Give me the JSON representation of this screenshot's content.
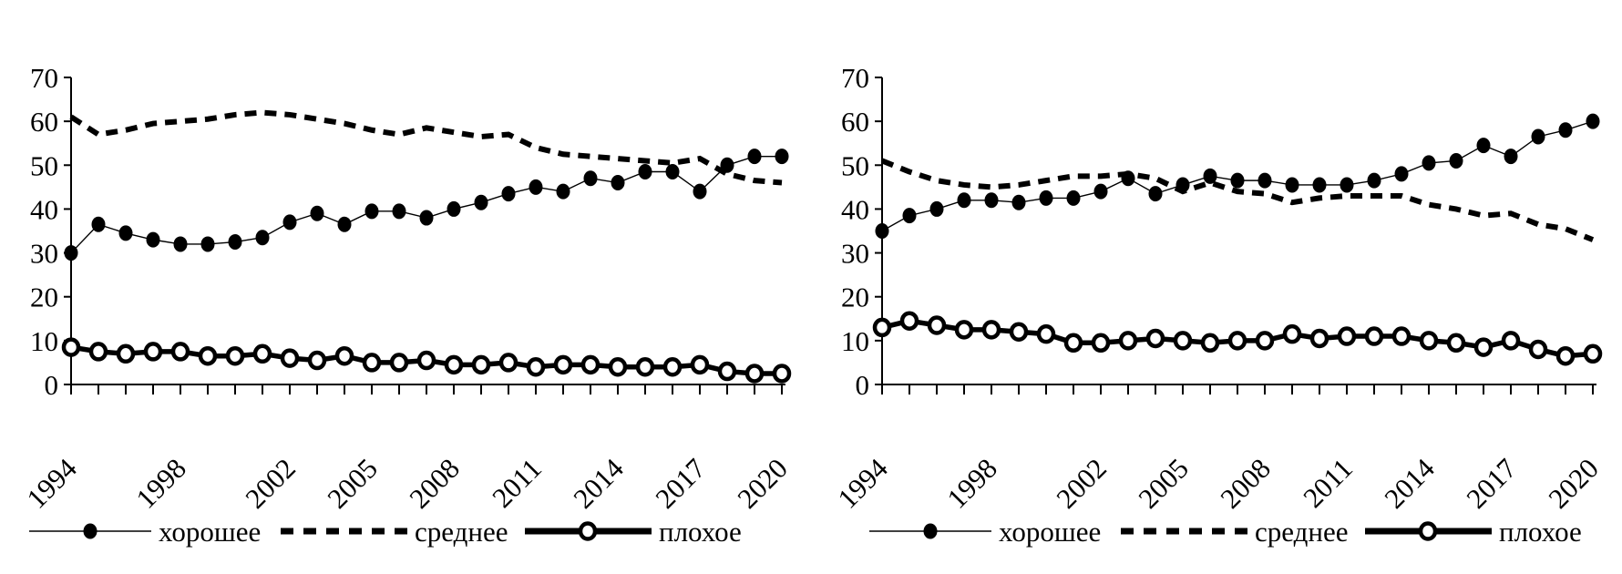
{
  "figure": {
    "background": "#ffffff",
    "line_color": "#000000",
    "text_color": "#000000"
  },
  "legend": {
    "items": [
      {
        "label": "хорошее",
        "line": "thin-solid",
        "marker": "filled-circle"
      },
      {
        "label": "среднее",
        "line": "thick-dashed",
        "marker": "none"
      },
      {
        "label": "плохое",
        "line": "thick-solid",
        "marker": "open-circle"
      }
    ]
  },
  "chart_data": [
    {
      "id": "left-chart",
      "type": "line",
      "title": "",
      "xlabel": "",
      "ylabel": "",
      "grid": false,
      "legend_position": "bottom",
      "legend_x_offset": 0,
      "ylim": [
        0,
        70
      ],
      "yticks": [
        0,
        10,
        20,
        30,
        40,
        50,
        60,
        70
      ],
      "x": [
        1994,
        1995,
        1996,
        1997,
        1998,
        1999,
        2000,
        2001,
        2002,
        2003,
        2004,
        2005,
        2006,
        2007,
        2008,
        2009,
        2010,
        2011,
        2012,
        2013,
        2014,
        2015,
        2016,
        2017,
        2018,
        2019,
        2020
      ],
      "x_tick_labels": [
        "1994",
        "1998",
        "2002",
        "2005",
        "2008",
        "2011",
        "2014",
        "2017",
        "2020"
      ],
      "x_tick_label_indices": [
        0,
        4,
        8,
        11,
        14,
        17,
        20,
        23,
        26
      ],
      "series": [
        {
          "name": "хорошее",
          "style": "good",
          "values": [
            30,
            36.5,
            34.5,
            33,
            32,
            32,
            32.5,
            33.5,
            37,
            39,
            36.5,
            39.5,
            39.5,
            38,
            40,
            41.5,
            43.5,
            45,
            44,
            47,
            46,
            48.5,
            48.5,
            44,
            50,
            52,
            52
          ]
        },
        {
          "name": "среднее",
          "style": "avg",
          "values": [
            61,
            57,
            58,
            59.5,
            60,
            60.5,
            61.5,
            62,
            61.5,
            60.5,
            59.5,
            58,
            57,
            58.5,
            57.5,
            56.5,
            57,
            54,
            52.5,
            52,
            51.5,
            51,
            50.5,
            51.5,
            48,
            46.5,
            46
          ]
        },
        {
          "name": "плохое",
          "style": "bad",
          "values": [
            8.5,
            7.5,
            7,
            7.5,
            7.5,
            6.5,
            6.5,
            7,
            6,
            5.5,
            6.5,
            5,
            5,
            5.5,
            4.5,
            4.5,
            5,
            4,
            4.5,
            4.5,
            4,
            4,
            4,
            4.5,
            3,
            2.5,
            2.5
          ]
        }
      ]
    },
    {
      "id": "right-chart",
      "type": "line",
      "title": "",
      "xlabel": "",
      "ylabel": "",
      "grid": false,
      "legend_position": "bottom",
      "legend_x_offset": 32,
      "ylim": [
        0,
        70
      ],
      "yticks": [
        0,
        10,
        20,
        30,
        40,
        50,
        60,
        70
      ],
      "x": [
        1994,
        1995,
        1996,
        1997,
        1998,
        1999,
        2000,
        2001,
        2002,
        2003,
        2004,
        2005,
        2006,
        2007,
        2008,
        2009,
        2010,
        2011,
        2012,
        2013,
        2014,
        2015,
        2016,
        2017,
        2018,
        2019,
        2020
      ],
      "x_tick_labels": [
        "1994",
        "1998",
        "2002",
        "2005",
        "2008",
        "2011",
        "2014",
        "2017",
        "2020"
      ],
      "x_tick_label_indices": [
        0,
        4,
        8,
        11,
        14,
        17,
        20,
        23,
        26
      ],
      "series": [
        {
          "name": "хорошее",
          "style": "good",
          "values": [
            35,
            38.5,
            40,
            42,
            42,
            41.5,
            42.5,
            42.5,
            44,
            47,
            43.5,
            45.5,
            47.5,
            46.5,
            46.5,
            45.5,
            45.5,
            45.5,
            46.5,
            48,
            50.5,
            51,
            54.5,
            52,
            56.5,
            58,
            60
          ]
        },
        {
          "name": "среднее",
          "style": "avg",
          "values": [
            51,
            48.5,
            46.5,
            45.5,
            45,
            45.5,
            46.5,
            47.5,
            47.5,
            48,
            47,
            44,
            46,
            44,
            43.5,
            41.5,
            42.5,
            43,
            43,
            43,
            41,
            40,
            38.5,
            39,
            36.5,
            35.5,
            33
          ]
        },
        {
          "name": "плохое",
          "style": "bad",
          "values": [
            13,
            14.5,
            13.5,
            12.5,
            12.5,
            12,
            11.5,
            9.5,
            9.5,
            10,
            10.5,
            10,
            9.5,
            10,
            10,
            11.5,
            10.5,
            11,
            11,
            11,
            10,
            9.5,
            8.5,
            10,
            8,
            6.5,
            7
          ]
        }
      ]
    }
  ]
}
